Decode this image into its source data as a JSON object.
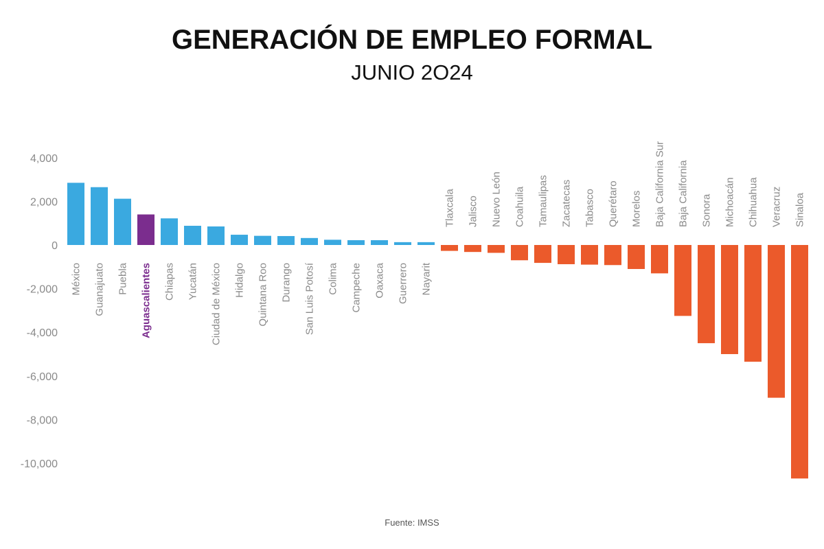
{
  "title": "GENERACIÓN DE EMPLEO FORMAL",
  "subtitle": "JUNIO 2O24",
  "source": "Fuente: IMSS",
  "colors": {
    "positive": "#3aa9e0",
    "negative": "#eb5a2b",
    "highlight": "#7b2d8e"
  },
  "highlight_category": "Aguascalientes",
  "chart_data": {
    "type": "bar",
    "title": "GENERACIÓN DE EMPLEO FORMAL",
    "subtitle": "JUNIO 2O24",
    "xlabel": "",
    "ylabel": "",
    "ylim": [
      -11000,
      4500
    ],
    "yticks": [
      4000,
      2000,
      0,
      -2000,
      -4000,
      -6000,
      -8000,
      -10000
    ],
    "ytick_labels": [
      "4,000",
      "2,000",
      "0",
      "-2,000",
      "-4,000",
      "-6,000",
      "-8,000",
      "-10,000"
    ],
    "grid": false,
    "categories": [
      "México",
      "Guanajuato",
      "Puebla",
      "Aguascalientes",
      "Chiapas",
      "Yucatán",
      "Ciudad de México",
      "Hidalgo",
      "Quintana Roo",
      "Durango",
      "San Luis Potosí",
      "Colima",
      "Campeche",
      "Oaxaca",
      "Guerrero",
      "Nayarit",
      "Tlaxcala",
      "Jalisco",
      "Nuevo León",
      "Coahuila",
      "Tamaulipas",
      "Zacatecas",
      "Tabasco",
      "Querétaro",
      "Morelos",
      "Baja California Sur",
      "Baja California",
      "Sonora",
      "Michoacán",
      "Chihuahua",
      "Veracruz",
      "Sinaloa"
    ],
    "values": [
      2850,
      2650,
      2120,
      1400,
      1220,
      880,
      850,
      470,
      420,
      410,
      320,
      240,
      220,
      220,
      130,
      130,
      -270,
      -320,
      -360,
      -700,
      -820,
      -880,
      -900,
      -920,
      -1100,
      -1300,
      -3250,
      -4500,
      -5000,
      -5350,
      -7000,
      -10700
    ]
  }
}
